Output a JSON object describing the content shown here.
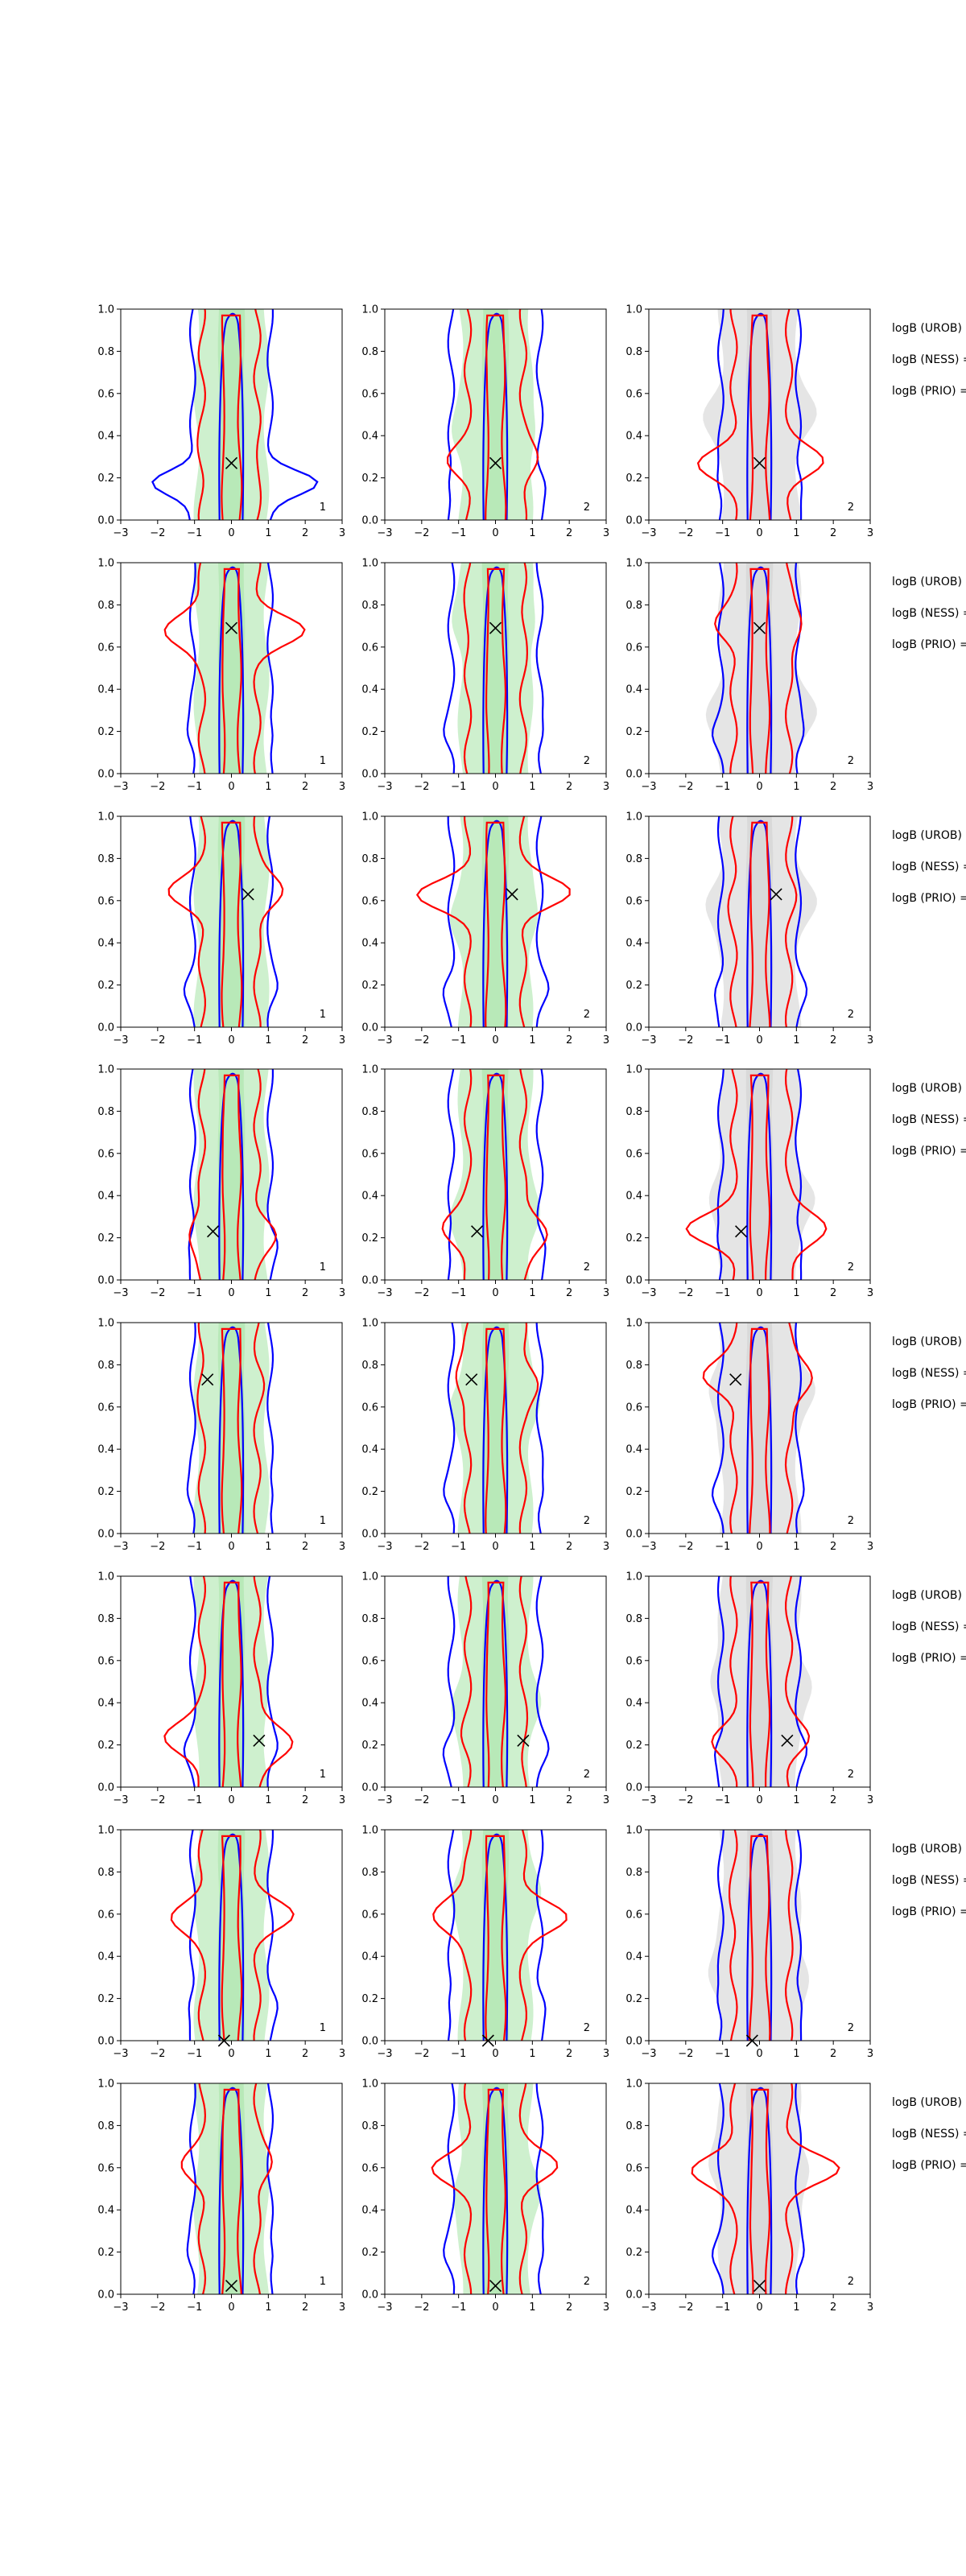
{
  "chart_data": {
    "type": "contour-grid",
    "xlim": [
      -3,
      3
    ],
    "ylim": [
      0.0,
      1.0
    ],
    "xticks": [
      -3,
      -2,
      -1,
      0,
      1,
      2,
      3
    ],
    "yticks": [
      "0.0",
      "0.2",
      "0.4",
      "0.6",
      "0.8",
      "1.0"
    ],
    "columns": [
      {
        "fill": "green",
        "tag": "1"
      },
      {
        "fill": "green",
        "tag": "2"
      },
      {
        "fill": "grey",
        "tag": "2"
      }
    ],
    "colors": {
      "blue": "#0000ff",
      "red": "#ff0000",
      "green": "#a6e3a6",
      "grey": "#cfcfcf"
    },
    "logb_labels": [
      "logB (UROB) =",
      "logB (NESS) =",
      "logB (PRIO) ="
    ],
    "rows": [
      {
        "truth": [
          0.0,
          0.27
        ]
      },
      {
        "truth": [
          0.0,
          0.69
        ]
      },
      {
        "truth": [
          0.45,
          0.63
        ]
      },
      {
        "truth": [
          -0.5,
          0.23
        ]
      },
      {
        "truth": [
          -0.65,
          0.73
        ]
      },
      {
        "truth": [
          0.75,
          0.22
        ]
      },
      {
        "truth": [
          -0.2,
          0.0
        ]
      },
      {
        "truth": [
          0.0,
          0.04
        ]
      }
    ]
  }
}
